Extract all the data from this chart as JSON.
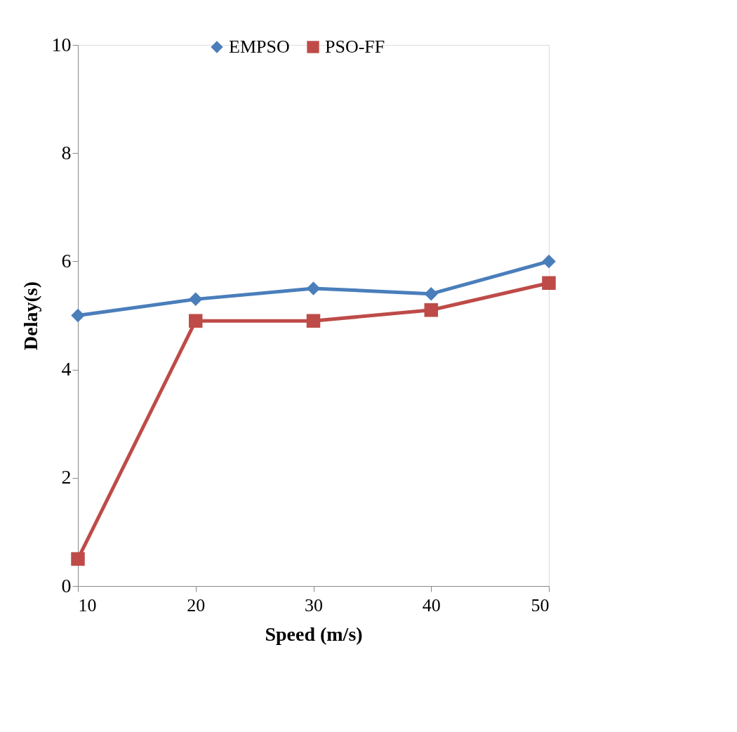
{
  "chart_data": {
    "type": "line",
    "xlabel": "Speed (m/s)",
    "ylabel": "Delay(s)",
    "x": [
      10,
      20,
      30,
      40,
      50
    ],
    "series": [
      {
        "name": "EMPSO",
        "color": "#4a7ebb",
        "marker": "diamond",
        "values": [
          5.0,
          5.3,
          5.5,
          5.4,
          6.0
        ]
      },
      {
        "name": "PSO-FF",
        "color": "#be4b48",
        "marker": "square",
        "values": [
          0.5,
          4.9,
          4.9,
          5.1,
          5.6
        ]
      }
    ],
    "xlim": [
      10,
      50
    ],
    "xticks": [
      10,
      20,
      30,
      40,
      50
    ],
    "ylim": [
      0,
      10
    ],
    "yticks": [
      0,
      2,
      4,
      6,
      8,
      10
    ],
    "grid": false,
    "legend": "top",
    "line_style": "solid"
  }
}
